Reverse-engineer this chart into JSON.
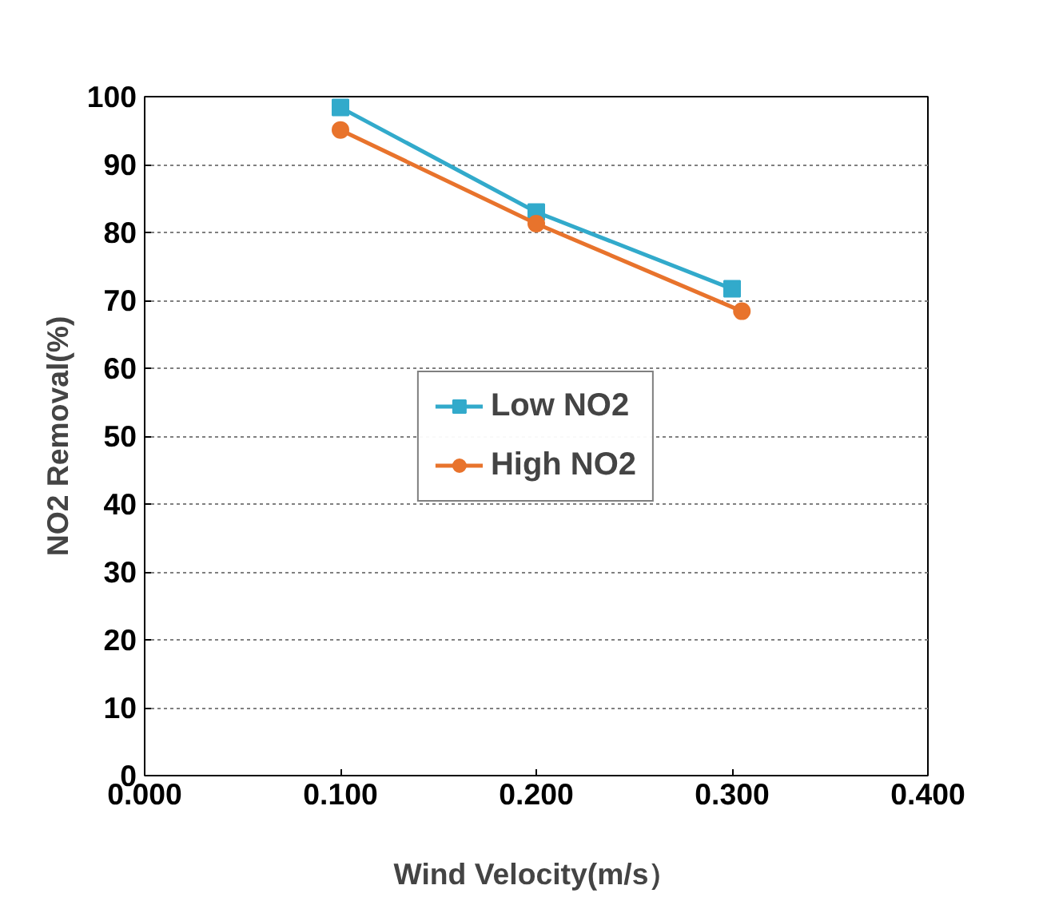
{
  "chart_data": {
    "type": "line",
    "xlabel": "Wind Velocity(m/s）",
    "ylabel": "NO2 Removal(%)",
    "xlim": [
      0,
      0.4
    ],
    "xticks": [
      {
        "value": 0,
        "label": "0.000"
      },
      {
        "value": 0.1,
        "label": "0.100"
      },
      {
        "value": 0.2,
        "label": "0.200"
      },
      {
        "value": 0.3,
        "label": "0.300"
      },
      {
        "value": 0.4,
        "label": "0.400"
      }
    ],
    "ylim": [
      0,
      100
    ],
    "yticks": [
      0,
      10,
      20,
      30,
      40,
      50,
      60,
      70,
      80,
      90,
      100
    ],
    "grid": "y",
    "legend": "center",
    "line_style": "solid",
    "series": [
      {
        "name": "Low NO2",
        "color": "#32aacb",
        "marker": "square",
        "x": [
          0.1,
          0.2,
          0.3
        ],
        "values": [
          98.4,
          83.0,
          71.7
        ]
      },
      {
        "name": "High NO2",
        "color": "#e8732c",
        "marker": "circle",
        "x": [
          0.1,
          0.2,
          0.305
        ],
        "values": [
          95.1,
          81.3,
          68.4
        ]
      }
    ]
  }
}
